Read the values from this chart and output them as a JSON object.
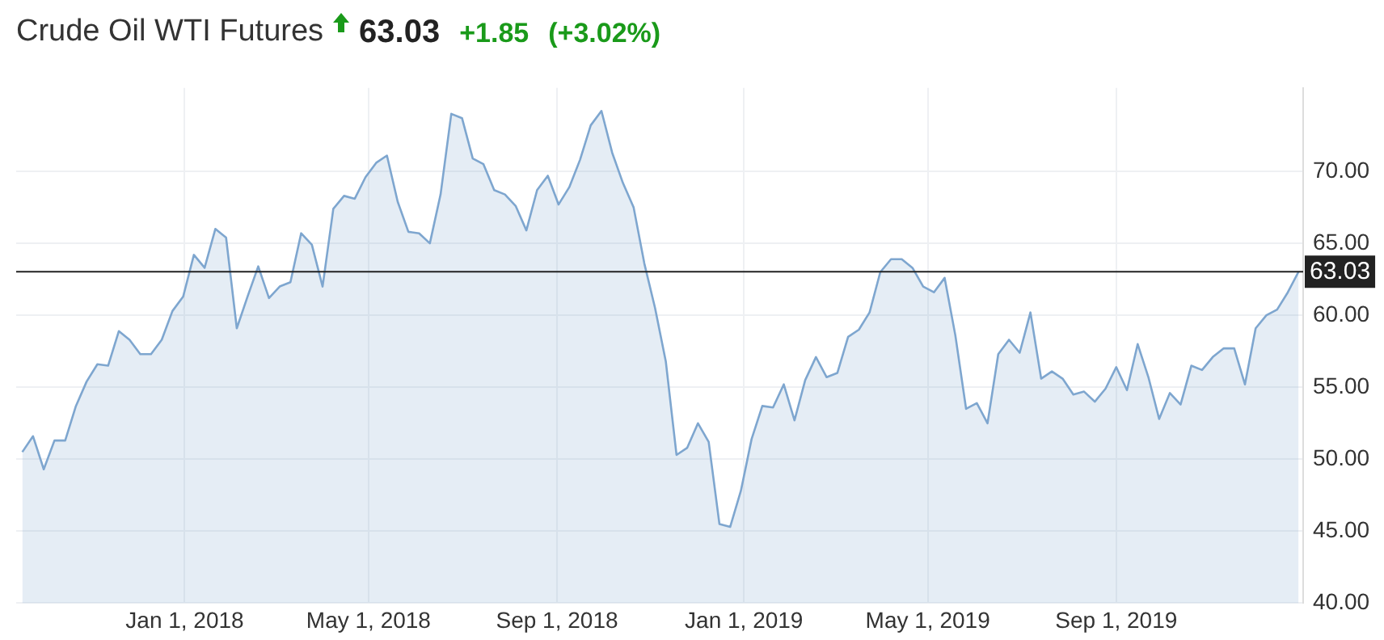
{
  "chart_data": {
    "type": "area",
    "title": "Crude Oil WTI Futures",
    "annotations": [
      "63.03",
      "+1.85",
      "(+3.02%)"
    ],
    "x": [
      "2017-09-17",
      "2017-09-24",
      "2017-10-01",
      "2017-10-08",
      "2017-10-15",
      "2017-10-22",
      "2017-10-29",
      "2017-11-05",
      "2017-11-12",
      "2017-11-19",
      "2017-11-26",
      "2017-12-03",
      "2017-12-10",
      "2017-12-17",
      "2017-12-24",
      "2017-12-31",
      "2018-01-07",
      "2018-01-14",
      "2018-01-21",
      "2018-01-28",
      "2018-02-04",
      "2018-02-11",
      "2018-02-18",
      "2018-02-25",
      "2018-03-04",
      "2018-03-11",
      "2018-03-18",
      "2018-03-25",
      "2018-04-01",
      "2018-04-08",
      "2018-04-15",
      "2018-04-22",
      "2018-04-29",
      "2018-05-06",
      "2018-05-13",
      "2018-05-20",
      "2018-05-27",
      "2018-06-03",
      "2018-06-10",
      "2018-06-17",
      "2018-06-24",
      "2018-07-01",
      "2018-07-08",
      "2018-07-15",
      "2018-07-22",
      "2018-07-29",
      "2018-08-05",
      "2018-08-12",
      "2018-08-19",
      "2018-08-26",
      "2018-09-02",
      "2018-09-09",
      "2018-09-16",
      "2018-09-23",
      "2018-09-30",
      "2018-10-07",
      "2018-10-14",
      "2018-10-21",
      "2018-10-28",
      "2018-11-04",
      "2018-11-11",
      "2018-11-18",
      "2018-11-25",
      "2018-12-02",
      "2018-12-09",
      "2018-12-16",
      "2018-12-23",
      "2018-12-30",
      "2019-01-06",
      "2019-01-13",
      "2019-01-20",
      "2019-01-27",
      "2019-02-03",
      "2019-02-10",
      "2019-02-17",
      "2019-02-24",
      "2019-03-03",
      "2019-03-10",
      "2019-03-17",
      "2019-03-24",
      "2019-03-31",
      "2019-04-07",
      "2019-04-14",
      "2019-04-21",
      "2019-04-28",
      "2019-05-05",
      "2019-05-12",
      "2019-05-19",
      "2019-05-26",
      "2019-06-02",
      "2019-06-09",
      "2019-06-16",
      "2019-06-23",
      "2019-06-30",
      "2019-07-07",
      "2019-07-14",
      "2019-07-21",
      "2019-07-28",
      "2019-08-04",
      "2019-08-11",
      "2019-08-18",
      "2019-08-25",
      "2019-09-01",
      "2019-09-08",
      "2019-09-15",
      "2019-09-22",
      "2019-09-29",
      "2019-10-06",
      "2019-10-13",
      "2019-10-20",
      "2019-10-27",
      "2019-11-03",
      "2019-11-10",
      "2019-11-17",
      "2019-11-24",
      "2019-12-01",
      "2019-12-08",
      "2019-12-15",
      "2019-12-22",
      "2019-12-29"
    ],
    "series": [
      {
        "color": "#7ea6cf",
        "values": [
          50.5,
          51.6,
          49.3,
          51.3,
          51.3,
          53.7,
          55.4,
          56.6,
          56.5,
          58.9,
          58.3,
          57.3,
          57.3,
          58.3,
          60.3,
          61.3,
          64.2,
          63.3,
          66.0,
          65.4,
          59.1,
          61.3,
          63.4,
          61.2,
          62.0,
          62.3,
          65.7,
          64.9,
          62.0,
          67.4,
          68.3,
          68.1,
          69.6,
          70.6,
          71.1,
          67.9,
          65.8,
          65.7,
          65.0,
          68.4,
          74.0,
          73.7,
          70.9,
          70.5,
          68.7,
          68.4,
          67.6,
          65.9,
          68.7,
          69.7,
          67.7,
          68.9,
          70.8,
          73.2,
          74.2,
          71.3,
          69.2,
          67.5,
          63.6,
          60.5,
          56.8,
          50.3,
          50.8,
          52.5,
          51.2,
          45.5,
          45.3,
          47.8,
          51.4,
          53.7,
          53.6,
          55.2,
          52.7,
          55.5,
          57.1,
          55.7,
          56.0,
          58.5,
          59.0,
          60.2,
          63.0,
          63.9,
          63.9,
          63.3,
          62.0,
          61.6,
          62.6,
          58.6,
          53.5,
          53.9,
          52.5,
          57.3,
          58.3,
          57.4,
          60.2,
          55.6,
          56.1,
          55.6,
          54.5,
          54.7,
          54.0,
          54.9,
          56.4,
          54.8,
          58.0,
          55.7,
          52.8,
          54.6,
          53.8,
          56.5,
          56.2,
          57.1,
          57.7,
          57.7,
          55.2,
          59.1,
          60.0,
          60.4,
          61.6,
          63.03
        ]
      }
    ],
    "xlim": [
      "2017-09-13",
      "2020-01-01"
    ],
    "xticks": [
      {
        "value": "2018-01-01",
        "label": "Jan 1, 2018"
      },
      {
        "value": "2018-05-01",
        "label": "May 1, 2018"
      },
      {
        "value": "2018-09-01",
        "label": "Sep 1, 2018"
      },
      {
        "value": "2019-01-01",
        "label": "Jan 1, 2019"
      },
      {
        "value": "2019-05-01",
        "label": "May 1, 2019"
      },
      {
        "value": "2019-09-01",
        "label": "Sep 1, 2019"
      }
    ],
    "ylim": [
      40,
      75.8
    ],
    "yticks": [
      {
        "value": 40,
        "label": "40.00"
      },
      {
        "value": 45,
        "label": "45.00"
      },
      {
        "value": 50,
        "label": "50.00"
      },
      {
        "value": 55,
        "label": "55.00"
      },
      {
        "value": 60,
        "label": "60.00"
      },
      {
        "value": 65,
        "label": "65.00"
      },
      {
        "value": 70,
        "label": "70.00"
      }
    ],
    "ref_lines": [
      {
        "axis": "y",
        "value": 63.03,
        "label": "63.03",
        "color": "#222222"
      }
    ],
    "grid": true,
    "legend": false,
    "marker": "none",
    "line_style": "solid"
  }
}
